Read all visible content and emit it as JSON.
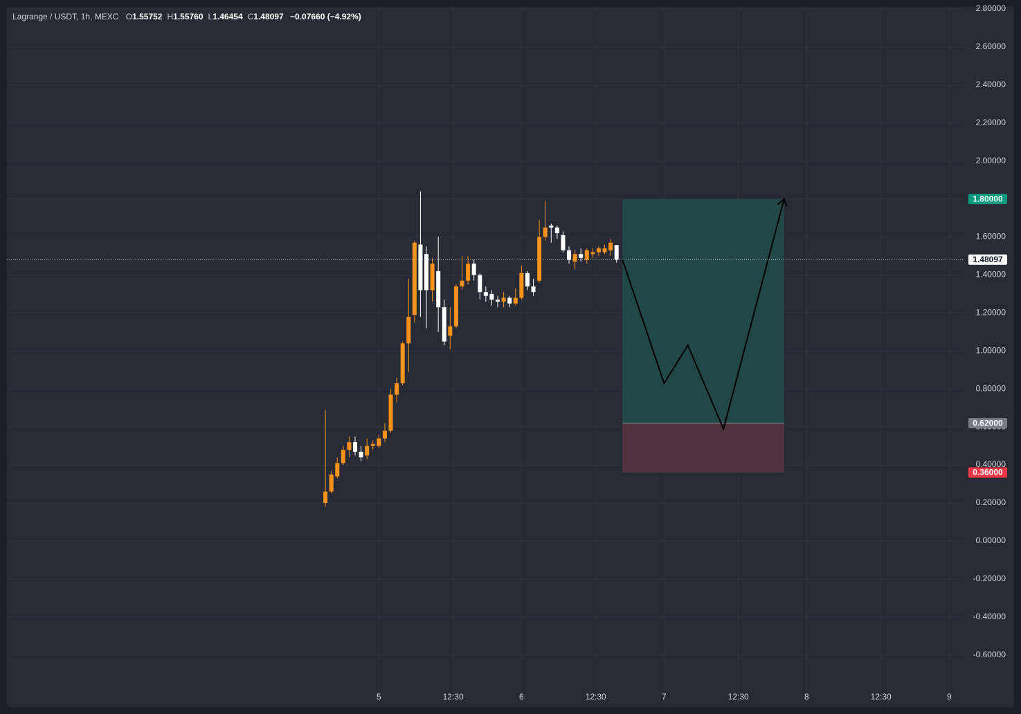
{
  "chart_data": {
    "type": "candlestick",
    "header": {
      "symbol": "Lagrange / USDT, 1h, MEXC",
      "fields": [
        {
          "key": "O",
          "value": "1.55752"
        },
        {
          "key": "H",
          "value": "1.55760"
        },
        {
          "key": "L",
          "value": "1.46454"
        },
        {
          "key": "C",
          "value": "1.48097"
        }
      ],
      "change": "−0.07660 (−4.92%)"
    },
    "x": [
      -9,
      -8,
      -7,
      -6,
      -5,
      -4,
      -3,
      -2,
      -1,
      0,
      1,
      2,
      3,
      4,
      5,
      6,
      7,
      8,
      9,
      10,
      11,
      12,
      13,
      14,
      15,
      16,
      17,
      18,
      19,
      20,
      21,
      22,
      23,
      24,
      25,
      26,
      27,
      28,
      29,
      30,
      31,
      32,
      33,
      34,
      35,
      36,
      37,
      38,
      39,
      40
    ],
    "open": [
      0.2,
      0.26,
      0.34,
      0.41,
      0.48,
      0.52,
      0.47,
      0.45,
      0.5,
      0.5,
      0.54,
      0.58,
      0.77,
      0.83,
      1.04,
      1.19,
      1.56,
      1.51,
      1.32,
      1.42,
      1.23,
      1.08,
      1.13,
      1.34,
      1.37,
      1.46,
      1.4,
      1.31,
      1.3,
      1.27,
      1.26,
      1.28,
      1.25,
      1.28,
      1.41,
      1.34,
      1.37,
      1.6,
      1.66,
      1.65,
      1.61,
      1.53,
      1.47,
      1.51,
      1.48,
      1.51,
      1.52,
      1.52,
      1.53,
      1.55752
    ],
    "high": [
      0.69,
      0.37,
      0.44,
      0.5,
      0.55,
      0.55,
      0.5,
      0.54,
      0.53,
      0.56,
      0.62,
      0.8,
      0.86,
      1.05,
      1.38,
      1.58,
      1.84,
      1.55,
      1.49,
      1.6,
      1.27,
      1.23,
      1.35,
      1.5,
      1.5,
      1.48,
      1.41,
      1.34,
      1.32,
      1.29,
      1.31,
      1.29,
      1.33,
      1.45,
      1.42,
      1.38,
      1.69,
      1.79,
      1.67,
      1.66,
      1.63,
      1.55,
      1.53,
      1.54,
      1.54,
      1.54,
      1.55,
      1.56,
      1.59,
      1.5576
    ],
    "low": [
      0.18,
      0.25,
      0.33,
      0.4,
      0.44,
      0.45,
      0.42,
      0.43,
      0.48,
      0.49,
      0.52,
      0.57,
      0.73,
      0.82,
      0.89,
      1.15,
      1.18,
      1.12,
      1.26,
      1.1,
      1.03,
      1.01,
      1.12,
      1.32,
      1.35,
      1.37,
      1.27,
      1.26,
      1.24,
      1.23,
      1.23,
      1.23,
      1.24,
      1.27,
      1.32,
      1.29,
      1.36,
      1.58,
      1.57,
      1.59,
      1.52,
      1.46,
      1.43,
      1.47,
      1.46,
      1.49,
      1.5,
      1.51,
      1.5,
      1.46454
    ],
    "close": [
      0.26,
      0.35,
      0.41,
      0.48,
      0.52,
      0.47,
      0.44,
      0.5,
      0.51,
      0.54,
      0.58,
      0.77,
      0.83,
      1.04,
      1.18,
      1.57,
      1.32,
      1.32,
      1.46,
      1.23,
      1.05,
      1.13,
      1.34,
      1.37,
      1.46,
      1.4,
      1.31,
      1.29,
      1.27,
      1.26,
      1.28,
      1.25,
      1.28,
      1.41,
      1.34,
      1.31,
      1.6,
      1.65,
      1.65,
      1.62,
      1.53,
      1.48,
      1.51,
      1.49,
      1.53,
      1.52,
      1.54,
      1.54,
      1.57,
      1.48097
    ],
    "up_color": "#f7931a",
    "down_color": "#ffffff",
    "xlim": [
      -62.6,
      98.4
    ],
    "ylim": [
      -0.867,
      2.811
    ],
    "xticks": [
      {
        "value": 0,
        "label": "5"
      },
      {
        "value": 12.5,
        "label": "12:30"
      },
      {
        "value": 24,
        "label": "6"
      },
      {
        "value": 36.5,
        "label": "12:30"
      },
      {
        "value": 48,
        "label": "7"
      },
      {
        "value": 60.5,
        "label": "12:30"
      },
      {
        "value": 72,
        "label": "8"
      },
      {
        "value": 84.5,
        "label": "12:30"
      },
      {
        "value": 96,
        "label": "9"
      }
    ],
    "yticks": [
      {
        "value": 2.8,
        "label": "2.80000"
      },
      {
        "value": 2.6,
        "label": "2.60000"
      },
      {
        "value": 2.4,
        "label": "2.40000"
      },
      {
        "value": 2.2,
        "label": "2.20000"
      },
      {
        "value": 2.0,
        "label": "2.00000"
      },
      {
        "value": 1.8,
        "label": "1.80000"
      },
      {
        "value": 1.6,
        "label": "1.60000"
      },
      {
        "value": 1.4,
        "label": "1.40000"
      },
      {
        "value": 1.2,
        "label": "1.20000"
      },
      {
        "value": 1.0,
        "label": "1.00000"
      },
      {
        "value": 0.8,
        "label": "0.80000"
      },
      {
        "value": 0.6,
        "label": "0.60000"
      },
      {
        "value": 0.4,
        "label": "0.40000"
      },
      {
        "value": 0.2,
        "label": "0.20000"
      },
      {
        "value": 0,
        "label": "0.00000"
      },
      {
        "value": -0.2,
        "label": "-0.20000"
      },
      {
        "value": -0.4,
        "label": "-0.40000"
      },
      {
        "value": -0.6,
        "label": "-0.60000"
      }
    ],
    "grid": true,
    "last_price": {
      "value": 1.48097,
      "label": "1.48097"
    },
    "position": {
      "x_start": 41,
      "x_end": 68.2,
      "target": {
        "value": 1.8,
        "label": "1.80000",
        "color": "#089981"
      },
      "entry": {
        "value": 0.62,
        "label": "0.62000",
        "color": "#787b86"
      },
      "stop": {
        "value": 0.36,
        "label": "0.36000",
        "color": "#f23645"
      }
    },
    "projection": {
      "x": [
        41,
        48,
        52,
        58,
        68.2
      ],
      "y": [
        1.48,
        0.83,
        1.03,
        0.59,
        1.8
      ]
    }
  }
}
